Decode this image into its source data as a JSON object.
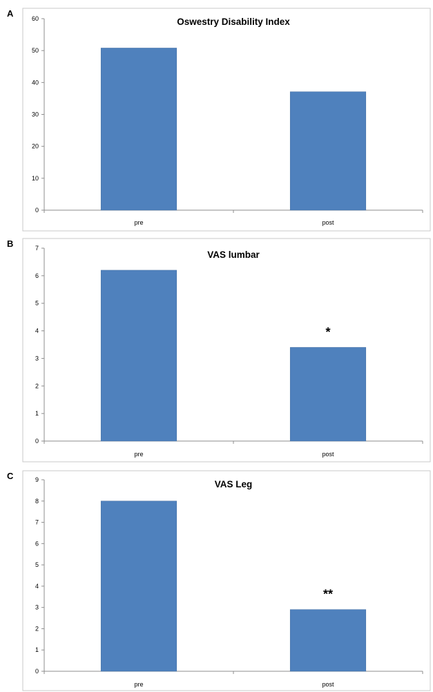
{
  "colors": {
    "bar": "#4f81bd",
    "frame": "#c8c8c8",
    "axis": "#8c8c8c"
  },
  "chart_data": [
    {
      "panel": "A",
      "type": "bar",
      "title": "Oswestry Disability Index",
      "categories": [
        "pre",
        "post"
      ],
      "values": [
        50.8,
        37.1
      ],
      "ylim": [
        0,
        60
      ],
      "yticks": [
        0,
        10,
        20,
        30,
        40,
        50,
        60
      ],
      "annotations": [
        "",
        ""
      ],
      "xlabel": "",
      "ylabel": "",
      "grid": false,
      "legend": "none"
    },
    {
      "panel": "B",
      "type": "bar",
      "title": "VAS lumbar",
      "categories": [
        "pre",
        "post"
      ],
      "values": [
        6.2,
        3.4
      ],
      "ylim": [
        0,
        7
      ],
      "yticks": [
        0,
        1,
        2,
        3,
        4,
        5,
        6,
        7
      ],
      "annotations": [
        "",
        "*"
      ],
      "xlabel": "",
      "ylabel": "",
      "grid": false,
      "legend": "none"
    },
    {
      "panel": "C",
      "type": "bar",
      "title": "VAS Leg",
      "categories": [
        "pre",
        "post"
      ],
      "values": [
        8.0,
        2.9
      ],
      "ylim": [
        0,
        9
      ],
      "yticks": [
        0,
        1,
        2,
        3,
        4,
        5,
        6,
        7,
        8,
        9
      ],
      "annotations": [
        "",
        "**"
      ],
      "xlabel": "",
      "ylabel": "",
      "grid": false,
      "legend": "none"
    }
  ]
}
